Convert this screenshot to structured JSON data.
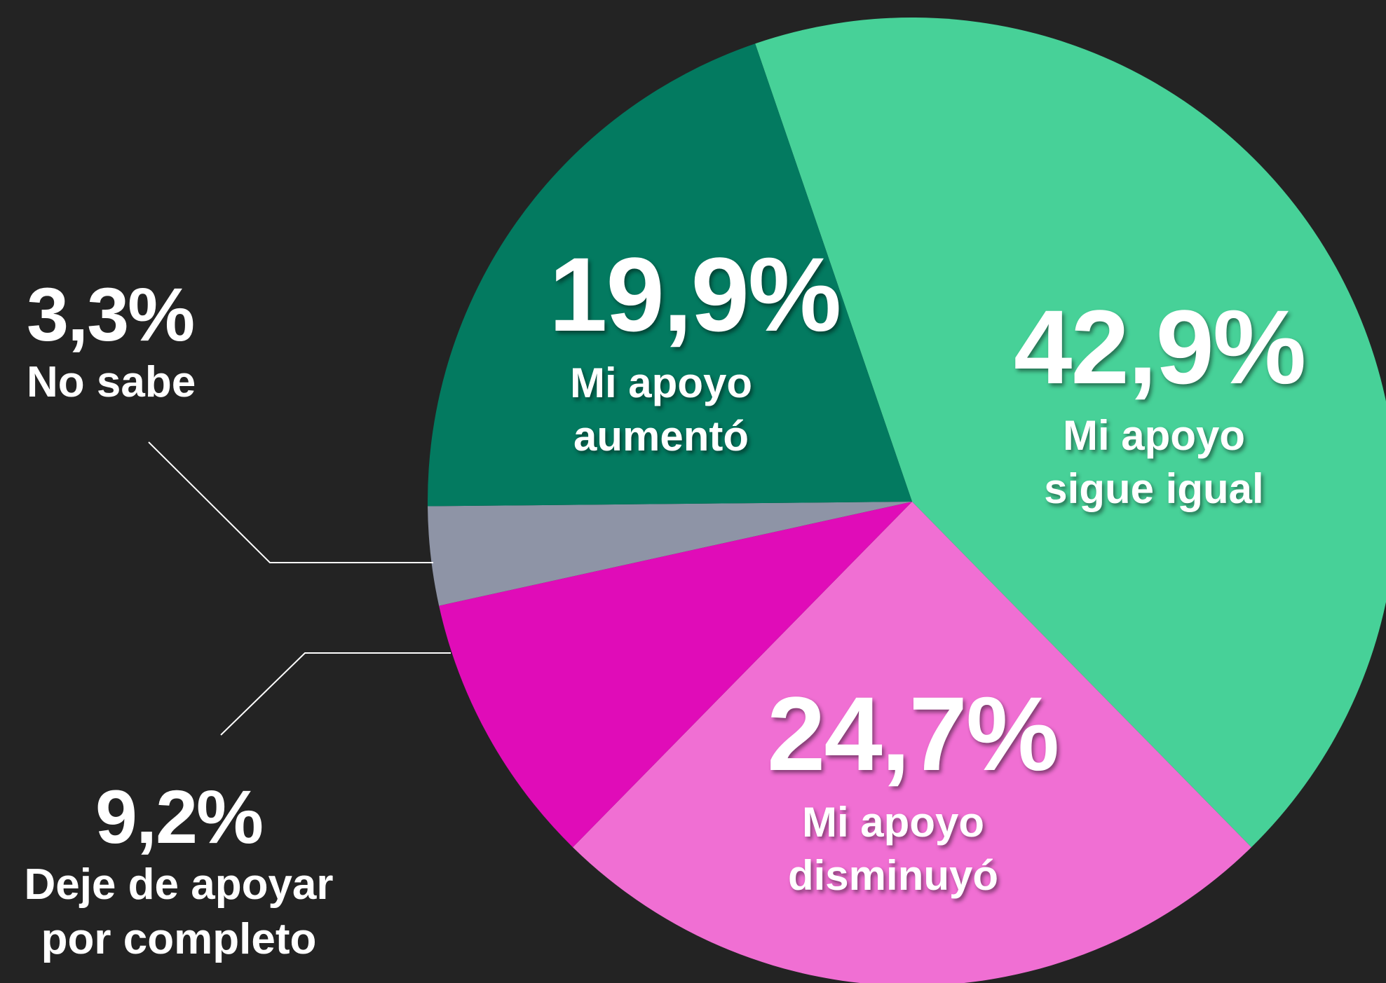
{
  "chart_data": {
    "type": "pie",
    "categories": [
      "Mi apoyo sigue igual",
      "Mi apoyo disminuyó",
      "Deje de apoyar por completo",
      "No sabe",
      "Mi apoyo aumentó"
    ],
    "values": [
      42.9,
      24.7,
      9.2,
      3.3,
      19.9
    ],
    "value_labels": [
      "42,9%",
      "24,7%",
      "9,2%",
      "3,3%",
      "19,9%"
    ],
    "colors": [
      "#47d198",
      "#f06fd3",
      "#e00cb8",
      "#8e94a6",
      "#037a60"
    ]
  }
}
